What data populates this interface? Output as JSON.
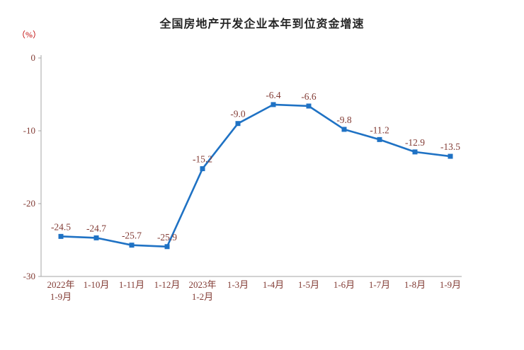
{
  "chart_data": {
    "type": "line",
    "title": "全国房地产开发企业本年到位资金增速",
    "ylabel": "（%）",
    "categories": [
      "2022年\n1-9月",
      "1-10月",
      "1-11月",
      "1-12月",
      "2023年\n1-2月",
      "1-3月",
      "1-4月",
      "1-5月",
      "1-6月",
      "1-7月",
      "1-8月",
      "1-9月"
    ],
    "values": [
      -24.5,
      -24.7,
      -25.7,
      -25.9,
      -15.2,
      -9.0,
      -6.4,
      -6.6,
      -9.8,
      -11.2,
      -12.9,
      -13.5
    ],
    "data_labels": [
      "-24.5",
      "-24.7",
      "-25.7",
      "-25.9",
      "-15.2",
      "-9.0",
      "-6.4",
      "-6.6",
      "-9.8",
      "-11.2",
      "-12.9",
      "-13.5"
    ],
    "xlabel": "",
    "ylim": [
      -30,
      0
    ],
    "yticks": [
      0,
      -10,
      -20,
      -30
    ],
    "grid": false,
    "legend": "none",
    "colors": {
      "line": "#1F72C4",
      "marker": "#1F72C4",
      "text": "#823B34",
      "percent_label": "#C00000",
      "axis": "#A6A6A6",
      "title": "#262626"
    }
  }
}
